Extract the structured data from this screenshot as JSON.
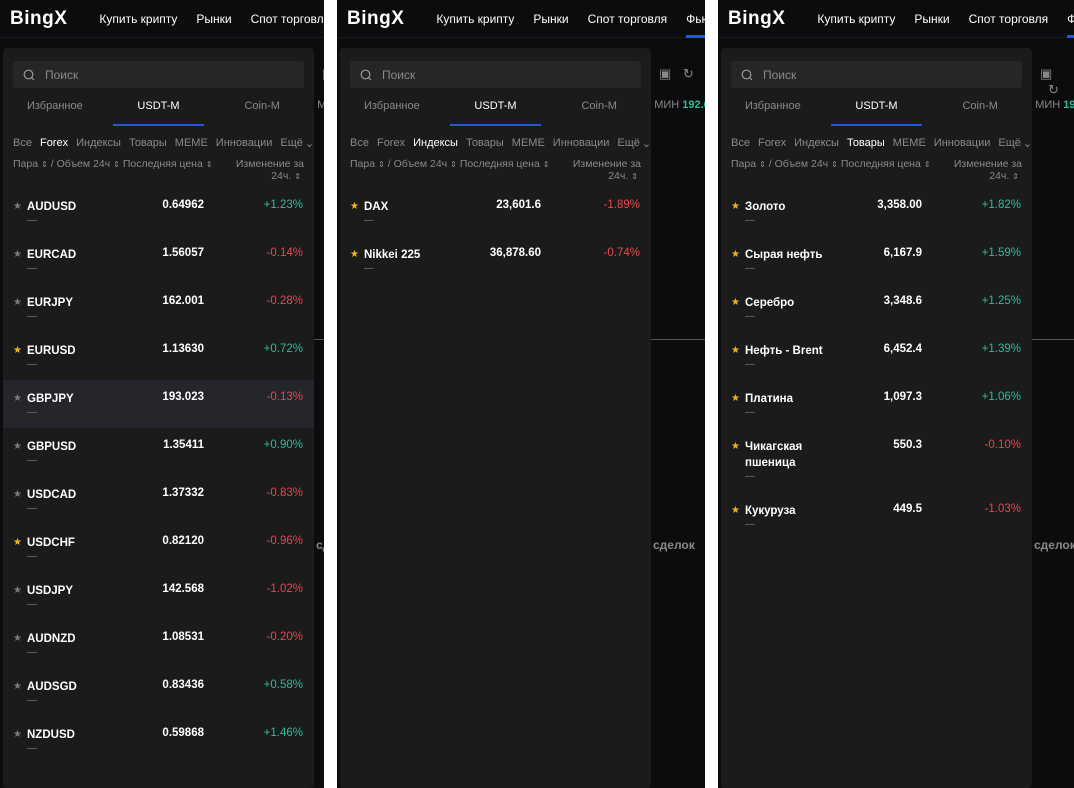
{
  "header": {
    "logo": "BingX",
    "nav": [
      "Купить крипту",
      "Рынки",
      "Спот торговля",
      "Фьючерсы"
    ]
  },
  "background": {
    "min_label": "МИН",
    "min_value": "192.6",
    "deals_label": "сделок"
  },
  "colors": {
    "up": "#2dbd96",
    "down": "#e8474d",
    "star_fav": "#f5b01a",
    "star": "#7a7a7a",
    "accent": "#2354e6"
  },
  "dropdown": {
    "search_placeholder": "Поиск",
    "tabs": [
      "Избранное",
      "USDT-M",
      "Coin-M"
    ],
    "filters": [
      "Все",
      "Forex",
      "Индексы",
      "Товары",
      "MEME",
      "Инновации",
      "Ещё"
    ],
    "columns": {
      "pair": "Пара",
      "volume": "/ Объем 24ч",
      "price": "Последняя цена",
      "change": "Изменение за 24ч."
    }
  },
  "panels": [
    {
      "active_filter": "Forex",
      "rows": [
        {
          "name": "AUDUSD",
          "sub": "—",
          "price": "0.64962",
          "change": "+1.23%",
          "fav": false
        },
        {
          "name": "EURCAD",
          "sub": "—",
          "price": "1.56057",
          "change": "-0.14%",
          "fav": false
        },
        {
          "name": "EURJPY",
          "sub": "—",
          "price": "162.001",
          "change": "-0.28%",
          "fav": false
        },
        {
          "name": "EURUSD",
          "sub": "—",
          "price": "1.13630",
          "change": "+0.72%",
          "fav": true
        },
        {
          "name": "GBPJPY",
          "sub": "—",
          "price": "193.023",
          "change": "-0.13%",
          "fav": false,
          "hover": true
        },
        {
          "name": "GBPUSD",
          "sub": "—",
          "price": "1.35411",
          "change": "+0.90%",
          "fav": false
        },
        {
          "name": "USDCAD",
          "sub": "—",
          "price": "1.37332",
          "change": "-0.83%",
          "fav": false
        },
        {
          "name": "USDCHF",
          "sub": "—",
          "price": "0.82120",
          "change": "-0.96%",
          "fav": true
        },
        {
          "name": "USDJPY",
          "sub": "—",
          "price": "142.568",
          "change": "-1.02%",
          "fav": false
        },
        {
          "name": "AUDNZD",
          "sub": "—",
          "price": "1.08531",
          "change": "-0.20%",
          "fav": false
        },
        {
          "name": "AUDSGD",
          "sub": "—",
          "price": "0.83436",
          "change": "+0.58%",
          "fav": false
        },
        {
          "name": "NZDUSD",
          "sub": "—",
          "price": "0.59868",
          "change": "+1.46%",
          "fav": false
        }
      ]
    },
    {
      "active_filter": "Индексы",
      "rows": [
        {
          "name": "DAX",
          "sub": "—",
          "price": "23,601.6",
          "change": "-1.89%",
          "fav": true
        },
        {
          "name": "Nikkei 225",
          "sub": "—",
          "price": "36,878.60",
          "change": "-0.74%",
          "fav": true
        }
      ]
    },
    {
      "active_filter": "Товары",
      "rows": [
        {
          "name": "Золото",
          "sub": "—",
          "price": "3,358.00",
          "change": "+1.82%",
          "fav": true
        },
        {
          "name": "Сырая нефть",
          "sub": "—",
          "price": "6,167.9",
          "change": "+1.59%",
          "fav": true
        },
        {
          "name": "Серебро",
          "sub": "—",
          "price": "3,348.6",
          "change": "+1.25%",
          "fav": true
        },
        {
          "name": "Нефть - Brent",
          "sub": "—",
          "price": "6,452.4",
          "change": "+1.39%",
          "fav": true
        },
        {
          "name": "Платина",
          "sub": "—",
          "price": "1,097.3",
          "change": "+1.06%",
          "fav": true
        },
        {
          "name": "Чикагская пшеница",
          "sub": "—",
          "price": "550.3",
          "change": "-0.10%",
          "fav": true,
          "tall": true
        },
        {
          "name": "Кукуруза",
          "sub": "—",
          "price": "449.5",
          "change": "-1.03%",
          "fav": true
        }
      ]
    }
  ]
}
